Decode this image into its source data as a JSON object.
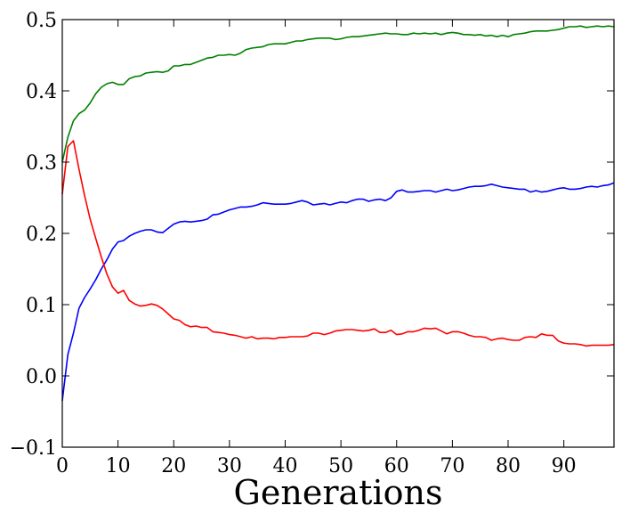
{
  "chart_data": {
    "type": "line",
    "title": "",
    "xlabel": "Generations",
    "ylabel": "",
    "xlim": [
      0,
      99
    ],
    "ylim": [
      -0.1,
      0.5
    ],
    "grid": false,
    "x_ticks": [
      0,
      10,
      20,
      30,
      40,
      50,
      60,
      70,
      80,
      90
    ],
    "x_tick_labels": [
      "0",
      "10",
      "20",
      "30",
      "40",
      "50",
      "60",
      "70",
      "80",
      "90"
    ],
    "y_ticks": [
      -0.1,
      0.0,
      0.1,
      0.2,
      0.3,
      0.4,
      0.5
    ],
    "y_tick_labels": [
      "−0.1",
      "0.0",
      "0.1",
      "0.2",
      "0.3",
      "0.4",
      "0.5"
    ],
    "series": [
      {
        "color": "#008000",
        "points": [
          [
            0,
            0.3
          ],
          [
            1,
            0.335
          ],
          [
            2,
            0.358
          ],
          [
            3,
            0.368
          ],
          [
            4,
            0.373
          ],
          [
            5,
            0.383
          ],
          [
            6,
            0.396
          ],
          [
            7,
            0.405
          ],
          [
            8,
            0.41
          ],
          [
            9,
            0.412
          ],
          [
            10,
            0.409
          ],
          [
            11,
            0.409
          ],
          [
            12,
            0.417
          ],
          [
            13,
            0.42
          ],
          [
            14,
            0.421
          ],
          [
            15,
            0.425
          ],
          [
            16,
            0.426
          ],
          [
            17,
            0.427
          ],
          [
            18,
            0.426
          ],
          [
            19,
            0.428
          ],
          [
            20,
            0.435
          ],
          [
            21,
            0.435
          ],
          [
            22,
            0.437
          ],
          [
            23,
            0.437
          ],
          [
            24,
            0.44
          ],
          [
            25,
            0.443
          ],
          [
            26,
            0.446
          ],
          [
            27,
            0.447
          ],
          [
            28,
            0.45
          ],
          [
            29,
            0.45
          ],
          [
            30,
            0.451
          ],
          [
            31,
            0.45
          ],
          [
            32,
            0.453
          ],
          [
            33,
            0.458
          ],
          [
            34,
            0.46
          ],
          [
            35,
            0.461
          ],
          [
            36,
            0.462
          ],
          [
            37,
            0.465
          ],
          [
            38,
            0.466
          ],
          [
            39,
            0.466
          ],
          [
            40,
            0.466
          ],
          [
            41,
            0.468
          ],
          [
            42,
            0.47
          ],
          [
            43,
            0.47
          ],
          [
            44,
            0.472
          ],
          [
            45,
            0.473
          ],
          [
            46,
            0.474
          ],
          [
            47,
            0.474
          ],
          [
            48,
            0.474
          ],
          [
            49,
            0.472
          ],
          [
            50,
            0.473
          ],
          [
            51,
            0.475
          ],
          [
            52,
            0.476
          ],
          [
            53,
            0.476
          ],
          [
            54,
            0.477
          ],
          [
            55,
            0.478
          ],
          [
            56,
            0.479
          ],
          [
            57,
            0.48
          ],
          [
            58,
            0.481
          ],
          [
            59,
            0.48
          ],
          [
            60,
            0.48
          ],
          [
            61,
            0.479
          ],
          [
            62,
            0.479
          ],
          [
            63,
            0.481
          ],
          [
            64,
            0.48
          ],
          [
            65,
            0.481
          ],
          [
            66,
            0.48
          ],
          [
            67,
            0.481
          ],
          [
            68,
            0.479
          ],
          [
            69,
            0.481
          ],
          [
            70,
            0.482
          ],
          [
            71,
            0.481
          ],
          [
            72,
            0.479
          ],
          [
            73,
            0.479
          ],
          [
            74,
            0.478
          ],
          [
            75,
            0.479
          ],
          [
            76,
            0.477
          ],
          [
            77,
            0.478
          ],
          [
            78,
            0.476
          ],
          [
            79,
            0.478
          ],
          [
            80,
            0.476
          ],
          [
            81,
            0.479
          ],
          [
            82,
            0.48
          ],
          [
            83,
            0.481
          ],
          [
            84,
            0.483
          ],
          [
            85,
            0.484
          ],
          [
            86,
            0.484
          ],
          [
            87,
            0.484
          ],
          [
            88,
            0.485
          ],
          [
            89,
            0.486
          ],
          [
            90,
            0.488
          ],
          [
            91,
            0.49
          ],
          [
            92,
            0.49
          ],
          [
            93,
            0.491
          ],
          [
            94,
            0.489
          ],
          [
            95,
            0.49
          ],
          [
            96,
            0.491
          ],
          [
            97,
            0.49
          ],
          [
            98,
            0.491
          ],
          [
            99,
            0.49
          ]
        ]
      },
      {
        "color": "#0000ff",
        "points": [
          [
            0,
            -0.035
          ],
          [
            1,
            0.03
          ],
          [
            2,
            0.06
          ],
          [
            3,
            0.095
          ],
          [
            4,
            0.11
          ],
          [
            5,
            0.122
          ],
          [
            6,
            0.135
          ],
          [
            7,
            0.15
          ],
          [
            8,
            0.163
          ],
          [
            9,
            0.178
          ],
          [
            10,
            0.188
          ],
          [
            11,
            0.19
          ],
          [
            12,
            0.196
          ],
          [
            13,
            0.2
          ],
          [
            14,
            0.203
          ],
          [
            15,
            0.205
          ],
          [
            16,
            0.205
          ],
          [
            17,
            0.202
          ],
          [
            18,
            0.201
          ],
          [
            19,
            0.207
          ],
          [
            20,
            0.213
          ],
          [
            21,
            0.216
          ],
          [
            22,
            0.217
          ],
          [
            23,
            0.216
          ],
          [
            24,
            0.217
          ],
          [
            25,
            0.218
          ],
          [
            26,
            0.22
          ],
          [
            27,
            0.226
          ],
          [
            28,
            0.227
          ],
          [
            29,
            0.23
          ],
          [
            30,
            0.233
          ],
          [
            31,
            0.235
          ],
          [
            32,
            0.237
          ],
          [
            33,
            0.237
          ],
          [
            34,
            0.238
          ],
          [
            35,
            0.24
          ],
          [
            36,
            0.243
          ],
          [
            37,
            0.242
          ],
          [
            38,
            0.241
          ],
          [
            39,
            0.241
          ],
          [
            40,
            0.241
          ],
          [
            41,
            0.242
          ],
          [
            42,
            0.244
          ],
          [
            43,
            0.246
          ],
          [
            44,
            0.244
          ],
          [
            45,
            0.24
          ],
          [
            46,
            0.241
          ],
          [
            47,
            0.242
          ],
          [
            48,
            0.24
          ],
          [
            49,
            0.242
          ],
          [
            50,
            0.244
          ],
          [
            51,
            0.243
          ],
          [
            52,
            0.246
          ],
          [
            53,
            0.248
          ],
          [
            54,
            0.248
          ],
          [
            55,
            0.245
          ],
          [
            56,
            0.247
          ],
          [
            57,
            0.248
          ],
          [
            58,
            0.246
          ],
          [
            59,
            0.25
          ],
          [
            60,
            0.259
          ],
          [
            61,
            0.261
          ],
          [
            62,
            0.258
          ],
          [
            63,
            0.258
          ],
          [
            64,
            0.259
          ],
          [
            65,
            0.26
          ],
          [
            66,
            0.26
          ],
          [
            67,
            0.258
          ],
          [
            68,
            0.26
          ],
          [
            69,
            0.262
          ],
          [
            70,
            0.26
          ],
          [
            71,
            0.261
          ],
          [
            72,
            0.263
          ],
          [
            73,
            0.265
          ],
          [
            74,
            0.266
          ],
          [
            75,
            0.266
          ],
          [
            76,
            0.267
          ],
          [
            77,
            0.269
          ],
          [
            78,
            0.267
          ],
          [
            79,
            0.265
          ],
          [
            80,
            0.264
          ],
          [
            81,
            0.263
          ],
          [
            82,
            0.262
          ],
          [
            83,
            0.262
          ],
          [
            84,
            0.258
          ],
          [
            85,
            0.26
          ],
          [
            86,
            0.258
          ],
          [
            87,
            0.259
          ],
          [
            88,
            0.261
          ],
          [
            89,
            0.263
          ],
          [
            90,
            0.264
          ],
          [
            91,
            0.262
          ],
          [
            92,
            0.262
          ],
          [
            93,
            0.263
          ],
          [
            94,
            0.265
          ],
          [
            95,
            0.266
          ],
          [
            96,
            0.265
          ],
          [
            97,
            0.267
          ],
          [
            98,
            0.268
          ],
          [
            99,
            0.271
          ]
        ]
      },
      {
        "color": "#ff0000",
        "points": [
          [
            0,
            0.255
          ],
          [
            1,
            0.322
          ],
          [
            2,
            0.33
          ],
          [
            3,
            0.29
          ],
          [
            4,
            0.253
          ],
          [
            5,
            0.22
          ],
          [
            6,
            0.193
          ],
          [
            7,
            0.167
          ],
          [
            8,
            0.143
          ],
          [
            9,
            0.125
          ],
          [
            10,
            0.116
          ],
          [
            11,
            0.12
          ],
          [
            12,
            0.106
          ],
          [
            13,
            0.101
          ],
          [
            14,
            0.098
          ],
          [
            15,
            0.099
          ],
          [
            16,
            0.101
          ],
          [
            17,
            0.099
          ],
          [
            18,
            0.094
          ],
          [
            19,
            0.087
          ],
          [
            20,
            0.08
          ],
          [
            21,
            0.078
          ],
          [
            22,
            0.072
          ],
          [
            23,
            0.069
          ],
          [
            24,
            0.07
          ],
          [
            25,
            0.068
          ],
          [
            26,
            0.068
          ],
          [
            27,
            0.062
          ],
          [
            28,
            0.061
          ],
          [
            29,
            0.06
          ],
          [
            30,
            0.058
          ],
          [
            31,
            0.057
          ],
          [
            32,
            0.055
          ],
          [
            33,
            0.053
          ],
          [
            34,
            0.055
          ],
          [
            35,
            0.052
          ],
          [
            36,
            0.053
          ],
          [
            37,
            0.053
          ],
          [
            38,
            0.052
          ],
          [
            39,
            0.054
          ],
          [
            40,
            0.054
          ],
          [
            41,
            0.055
          ],
          [
            42,
            0.055
          ],
          [
            43,
            0.055
          ],
          [
            44,
            0.056
          ],
          [
            45,
            0.06
          ],
          [
            46,
            0.06
          ],
          [
            47,
            0.058
          ],
          [
            48,
            0.06
          ],
          [
            49,
            0.063
          ],
          [
            50,
            0.064
          ],
          [
            51,
            0.065
          ],
          [
            52,
            0.065
          ],
          [
            53,
            0.064
          ],
          [
            54,
            0.063
          ],
          [
            55,
            0.064
          ],
          [
            56,
            0.066
          ],
          [
            57,
            0.061
          ],
          [
            58,
            0.061
          ],
          [
            59,
            0.064
          ],
          [
            60,
            0.058
          ],
          [
            61,
            0.059
          ],
          [
            62,
            0.062
          ],
          [
            63,
            0.062
          ],
          [
            64,
            0.064
          ],
          [
            65,
            0.067
          ],
          [
            66,
            0.066
          ],
          [
            67,
            0.067
          ],
          [
            68,
            0.063
          ],
          [
            69,
            0.059
          ],
          [
            70,
            0.062
          ],
          [
            71,
            0.062
          ],
          [
            72,
            0.06
          ],
          [
            73,
            0.057
          ],
          [
            74,
            0.055
          ],
          [
            75,
            0.055
          ],
          [
            76,
            0.054
          ],
          [
            77,
            0.05
          ],
          [
            78,
            0.052
          ],
          [
            79,
            0.053
          ],
          [
            80,
            0.051
          ],
          [
            81,
            0.05
          ],
          [
            82,
            0.05
          ],
          [
            83,
            0.054
          ],
          [
            84,
            0.055
          ],
          [
            85,
            0.054
          ],
          [
            86,
            0.059
          ],
          [
            87,
            0.057
          ],
          [
            88,
            0.057
          ],
          [
            89,
            0.049
          ],
          [
            90,
            0.046
          ],
          [
            91,
            0.045
          ],
          [
            92,
            0.045
          ],
          [
            93,
            0.044
          ],
          [
            94,
            0.042
          ],
          [
            95,
            0.043
          ],
          [
            96,
            0.043
          ],
          [
            97,
            0.043
          ],
          [
            98,
            0.043
          ],
          [
            99,
            0.044
          ]
        ]
      }
    ]
  }
}
